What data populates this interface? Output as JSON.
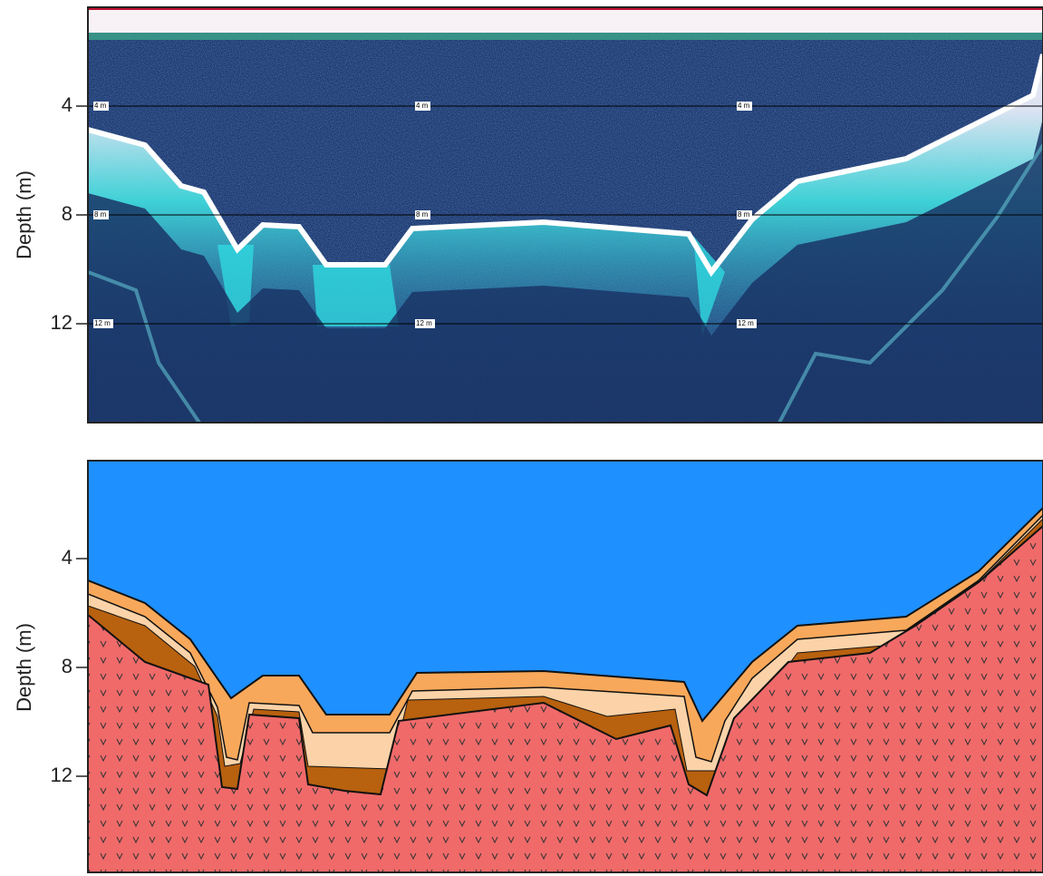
{
  "panels": [
    {
      "axis_label": "Depth (m)",
      "ticks": [
        4,
        8,
        12
      ],
      "depth_markers": [
        "4 m",
        "8 m",
        "12 m"
      ]
    },
    {
      "axis_label": "Depth (m)",
      "ticks": [
        4,
        8,
        12
      ]
    }
  ]
}
